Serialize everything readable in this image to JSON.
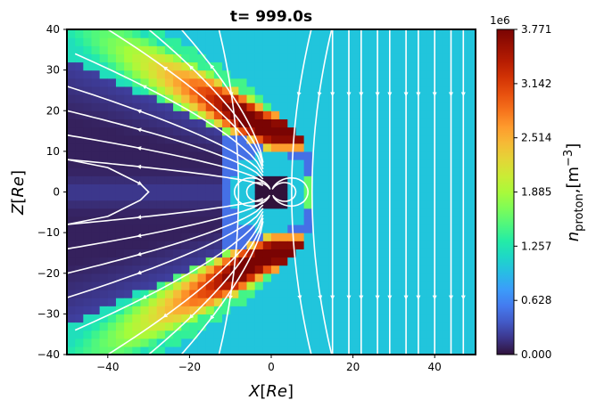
{
  "chart_data": {
    "type": "heatmap",
    "title": "t= 999.0s",
    "xlabel": "X[Re]",
    "ylabel": "Z[Re]",
    "xlim": [
      -50,
      50
    ],
    "ylim": [
      -40,
      40
    ],
    "xticks": [
      -40,
      -20,
      0,
      20,
      40
    ],
    "yticks": [
      -40,
      -30,
      -20,
      -10,
      0,
      10,
      20,
      30,
      40
    ],
    "colorbar": {
      "label_main": "n",
      "label_sub": "proton",
      "label_unit": ",[m",
      "label_unit_exp": "−3",
      "label_unit_close": "]",
      "exponent_label": "1e6",
      "min": 0.0,
      "max": 3.771,
      "ticks": [
        "0.000",
        "0.628",
        "1.257",
        "1.885",
        "2.514",
        "3.142",
        "3.771"
      ],
      "colormap": "turbo"
    },
    "field": {
      "description_values": "proton number density (x1e6 m^-3)",
      "solar_wind_density": 1.0,
      "grid_resolution_re": 2,
      "lobe_density": 0.08,
      "sheath_peak_density": 3.6,
      "planet_core_density": 0.0,
      "inner_magnetosphere_density": 1.0
    },
    "streamlines": {
      "color": "#ffffff",
      "solar_wind_x": [
        -8,
        5,
        10,
        15,
        19,
        22,
        26,
        29,
        33,
        36,
        40,
        44,
        47
      ],
      "direction": "southward"
    },
    "grid": false
  }
}
